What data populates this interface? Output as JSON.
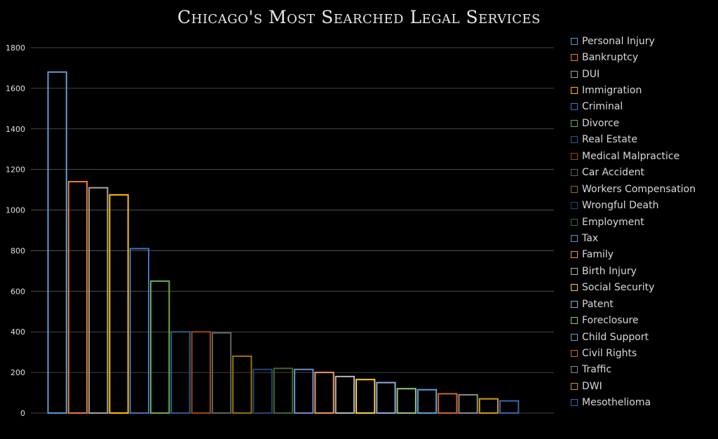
{
  "chart_data": {
    "type": "bar",
    "title": "Chicago's Most  Searched Legal Services",
    "xlabel": "",
    "ylabel": "",
    "ylim": [
      0,
      1800
    ],
    "yticks": [
      "0",
      "200",
      "400",
      "600",
      "800",
      "1000",
      "1200",
      "1400",
      "1600",
      "1800"
    ],
    "grid": true,
    "legend_position": "right",
    "categories": [
      "Personal Injury",
      "Bankruptcy",
      "DUI",
      "Immigration",
      "Criminal",
      "Divorce",
      "Real Estate",
      "Medical Malpractice",
      "Car Accident",
      "Workers Compensation",
      "Wrongful Death",
      "Employment",
      "Tax",
      "Family",
      "Birth Injury",
      "Social Security",
      "Patent",
      "Foreclosure",
      "Child Support",
      "Civil Rights",
      "Traffic",
      "DWI",
      "Mesothelioma"
    ],
    "values": [
      1680,
      1140,
      1110,
      1075,
      810,
      650,
      400,
      400,
      395,
      280,
      215,
      220,
      215,
      200,
      180,
      165,
      150,
      120,
      115,
      95,
      90,
      70,
      60
    ],
    "colors": [
      "#5b9bd5",
      "#ed7d31",
      "#a5a5a5",
      "#ffc000",
      "#4472c4",
      "#70ad47",
      "#255e91",
      "#9e480e",
      "#636363",
      "#997300",
      "#264478",
      "#43682b",
      "#698ed0",
      "#f1975a",
      "#b7b7b7",
      "#ffcd33",
      "#8faadc",
      "#9bc57a",
      "#5ea2d9",
      "#d9632a",
      "#8a8a8a",
      "#d19a1a",
      "#3a66b0"
    ]
  }
}
